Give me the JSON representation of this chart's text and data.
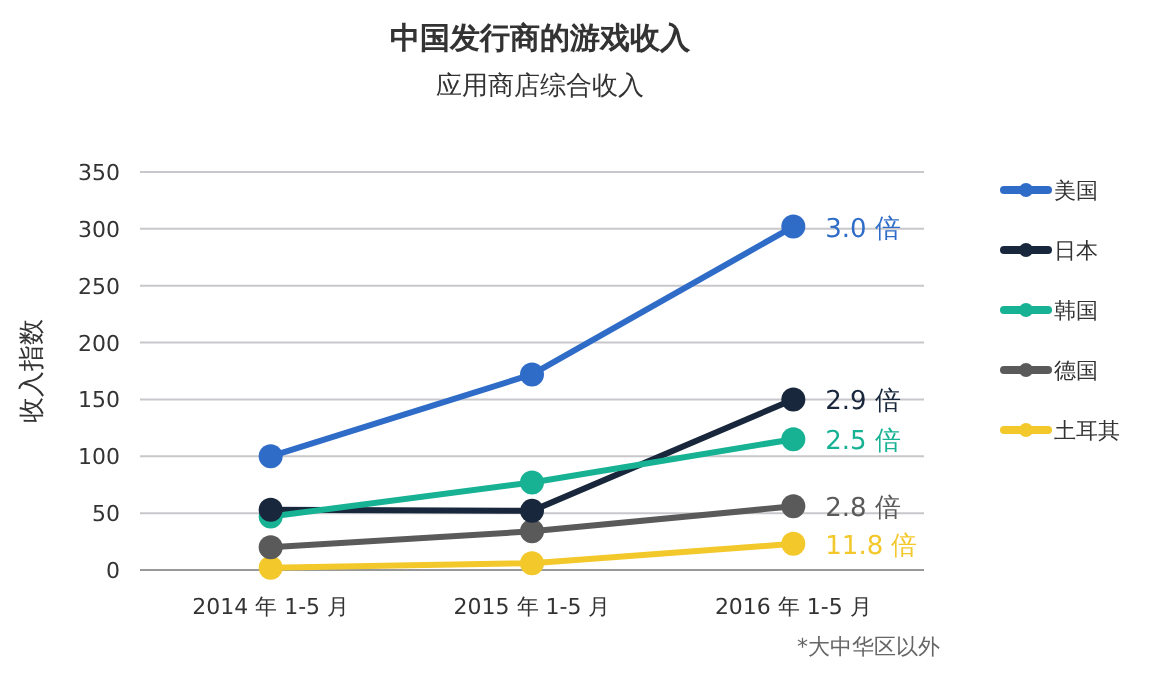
{
  "chart_data": {
    "type": "line",
    "title": "中国发行商的游戏收入",
    "subtitle": "应用商店综合收入",
    "ylabel": "收入指数",
    "categories": [
      "2014 年 1-5 月",
      "2015 年 1-5 月",
      "2016 年 1-5 月"
    ],
    "series": [
      {
        "name": "美国",
        "color": "#2f6cc8",
        "values": [
          100,
          172,
          302
        ]
      },
      {
        "name": "日本",
        "color": "#18273b",
        "values": [
          53,
          52,
          150
        ]
      },
      {
        "name": "韩国",
        "color": "#17b193",
        "values": [
          47,
          77,
          115
        ]
      },
      {
        "name": "德国",
        "color": "#5a5a5a",
        "values": [
          20,
          34,
          56
        ]
      },
      {
        "name": "土耳其",
        "color": "#f3c82b",
        "values": [
          2,
          6,
          23
        ]
      }
    ],
    "ylim": [
      0,
      350
    ],
    "yticks": [
      0,
      50,
      100,
      150,
      200,
      250,
      300,
      350
    ],
    "grid": "y",
    "legend": "right",
    "marker": "circle",
    "line_style": "solid",
    "annotations": [
      {
        "text": "3.0 倍",
        "x": "2016 年 1-5 月",
        "y": 302
      },
      {
        "text": "2.9 倍",
        "x": "2016 年 1-5 月",
        "y": 150
      },
      {
        "text": "2.5 倍",
        "x": "2016 年 1-5 月",
        "y": 115
      },
      {
        "text": "2.8 倍",
        "x": "2016 年 1-5 月",
        "y": 56
      },
      {
        "text": "11.8 倍",
        "x": "2016 年 1-5 月",
        "y": 23
      },
      "*大中华区以外"
    ]
  }
}
